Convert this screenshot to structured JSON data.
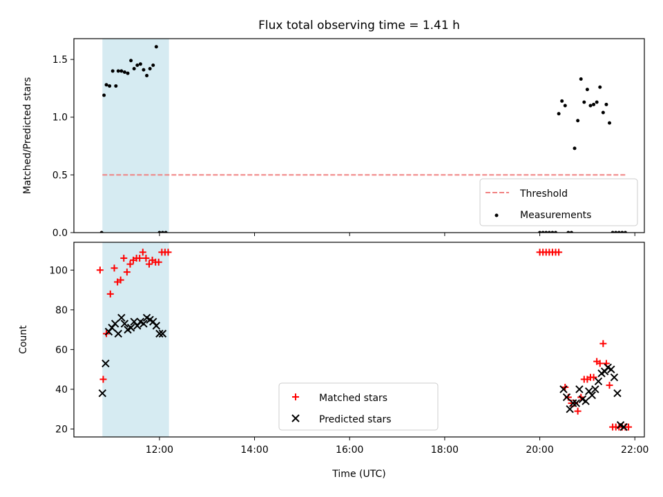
{
  "chart_data": [
    {
      "type": "scatter",
      "title": "Flux total observing time = 1.41 h",
      "xlabel": "",
      "ylabel": "Matched/Predicted stars",
      "xlim": [
        "10:12",
        "22:12"
      ],
      "ylim": [
        0,
        1.68
      ],
      "y_ticks": [
        0.0,
        0.5,
        1.0,
        1.5
      ],
      "y_tick_labels": [
        "0.0",
        "0.5",
        "1.0",
        "1.5"
      ],
      "x_tick_labels_visible": false,
      "highlight_span": {
        "start": "10:48",
        "end": "12:12",
        "color": "#add8e6"
      },
      "threshold": {
        "name": "Threshold",
        "value": 0.5,
        "start": "10:48",
        "end": "21:50",
        "color": "#f08080",
        "style": "dashed"
      },
      "legend": {
        "position": "lower-right",
        "entries": [
          "Threshold",
          "Measurements"
        ]
      },
      "series": [
        {
          "name": "Measurements",
          "marker": "dot",
          "color": "#000000",
          "x": [
            "10:47",
            "10:50",
            "10:53",
            "10:57",
            "11:01",
            "11:05",
            "11:08",
            "11:12",
            "11:16",
            "11:20",
            "11:24",
            "11:28",
            "11:32",
            "11:36",
            "11:40",
            "11:44",
            "11:48",
            "11:52",
            "11:56",
            "12:00",
            "12:04",
            "12:08",
            "20:00",
            "20:04",
            "20:08",
            "20:12",
            "20:16",
            "20:20",
            "20:24",
            "20:28",
            "20:32",
            "20:36",
            "20:40",
            "20:44",
            "20:48",
            "20:52",
            "20:56",
            "21:00",
            "21:04",
            "21:08",
            "21:12",
            "21:16",
            "21:20",
            "21:24",
            "21:28",
            "21:32",
            "21:36",
            "21:40",
            "21:44",
            "21:48"
          ],
          "y": [
            0.0,
            1.19,
            1.28,
            1.27,
            1.4,
            1.27,
            1.4,
            1.4,
            1.39,
            1.38,
            1.49,
            1.42,
            1.45,
            1.46,
            1.41,
            1.36,
            1.42,
            1.45,
            1.61,
            0.0,
            0.0,
            0.0,
            0.0,
            0.0,
            0.0,
            0.0,
            0.0,
            0.0,
            1.03,
            1.14,
            1.1,
            0.0,
            0.0,
            0.73,
            0.97,
            1.33,
            1.13,
            1.24,
            1.1,
            1.11,
            1.13,
            1.26,
            1.04,
            1.11,
            0.95,
            0.0,
            0.0,
            0.0,
            0.0,
            0.0
          ]
        }
      ]
    },
    {
      "type": "scatter",
      "title": "",
      "xlabel": "Time (UTC)",
      "ylabel": "Count",
      "xlim": [
        "10:12",
        "22:12"
      ],
      "ylim": [
        16,
        114
      ],
      "y_ticks": [
        20,
        40,
        60,
        80,
        100
      ],
      "y_tick_labels": [
        "20",
        "40",
        "60",
        "80",
        "100"
      ],
      "x_ticks": [
        "12:00",
        "14:00",
        "16:00",
        "18:00",
        "20:00",
        "22:00"
      ],
      "x_tick_labels": [
        "12:00",
        "14:00",
        "16:00",
        "18:00",
        "20:00",
        "22:00"
      ],
      "highlight_span": {
        "start": "10:48",
        "end": "12:12",
        "color": "#add8e6"
      },
      "legend": {
        "position": "lower-center",
        "entries": [
          "Matched stars",
          "Predicted stars"
        ]
      },
      "series": [
        {
          "name": "Matched stars",
          "marker": "plus",
          "color": "#ff0000",
          "x": [
            "10:45",
            "10:49",
            "10:53",
            "10:58",
            "11:03",
            "11:07",
            "11:11",
            "11:15",
            "11:19",
            "11:23",
            "11:27",
            "11:31",
            "11:35",
            "11:39",
            "11:43",
            "11:47",
            "11:51",
            "11:55",
            "11:59",
            "12:03",
            "12:07",
            "12:11",
            "20:00",
            "20:04",
            "20:08",
            "20:12",
            "20:16",
            "20:20",
            "20:24",
            "20:32",
            "20:36",
            "20:40",
            "20:44",
            "20:48",
            "20:52",
            "20:56",
            "21:00",
            "21:04",
            "21:08",
            "21:12",
            "21:16",
            "21:20",
            "21:24",
            "21:28",
            "21:32",
            "21:36",
            "21:40",
            "21:44",
            "21:48",
            "21:52"
          ],
          "y": [
            100,
            45,
            68,
            88,
            101,
            94,
            95,
            106,
            99,
            103,
            105,
            106,
            106,
            109,
            106,
            103,
            105,
            104,
            104,
            109,
            109,
            109,
            109,
            109,
            109,
            109,
            109,
            109,
            109,
            41,
            36,
            33,
            33,
            29,
            36,
            45,
            45,
            46,
            46,
            54,
            53,
            63,
            53,
            42,
            21,
            21,
            21,
            21,
            21,
            21
          ]
        },
        {
          "name": "Predicted stars",
          "marker": "x",
          "color": "#000000",
          "x": [
            "10:48",
            "10:52",
            "10:56",
            "11:00",
            "11:04",
            "11:08",
            "11:12",
            "11:16",
            "11:20",
            "11:24",
            "11:28",
            "11:32",
            "11:36",
            "11:40",
            "11:44",
            "11:48",
            "11:52",
            "11:56",
            "12:00",
            "12:04",
            "20:30",
            "20:34",
            "20:38",
            "20:42",
            "20:46",
            "20:50",
            "20:54",
            "20:58",
            "21:02",
            "21:06",
            "21:10",
            "21:14",
            "21:18",
            "21:22",
            "21:26",
            "21:30",
            "21:34",
            "21:38",
            "21:42",
            "21:46"
          ],
          "y": [
            38,
            53,
            69,
            71,
            73,
            68,
            76,
            73,
            70,
            71,
            74,
            72,
            74,
            73,
            76,
            75,
            74,
            72,
            68,
            68,
            40,
            36,
            30,
            33,
            33,
            40,
            35,
            34,
            39,
            37,
            40,
            44,
            48,
            49,
            51,
            50,
            46,
            38,
            22,
            21
          ]
        }
      ]
    }
  ]
}
